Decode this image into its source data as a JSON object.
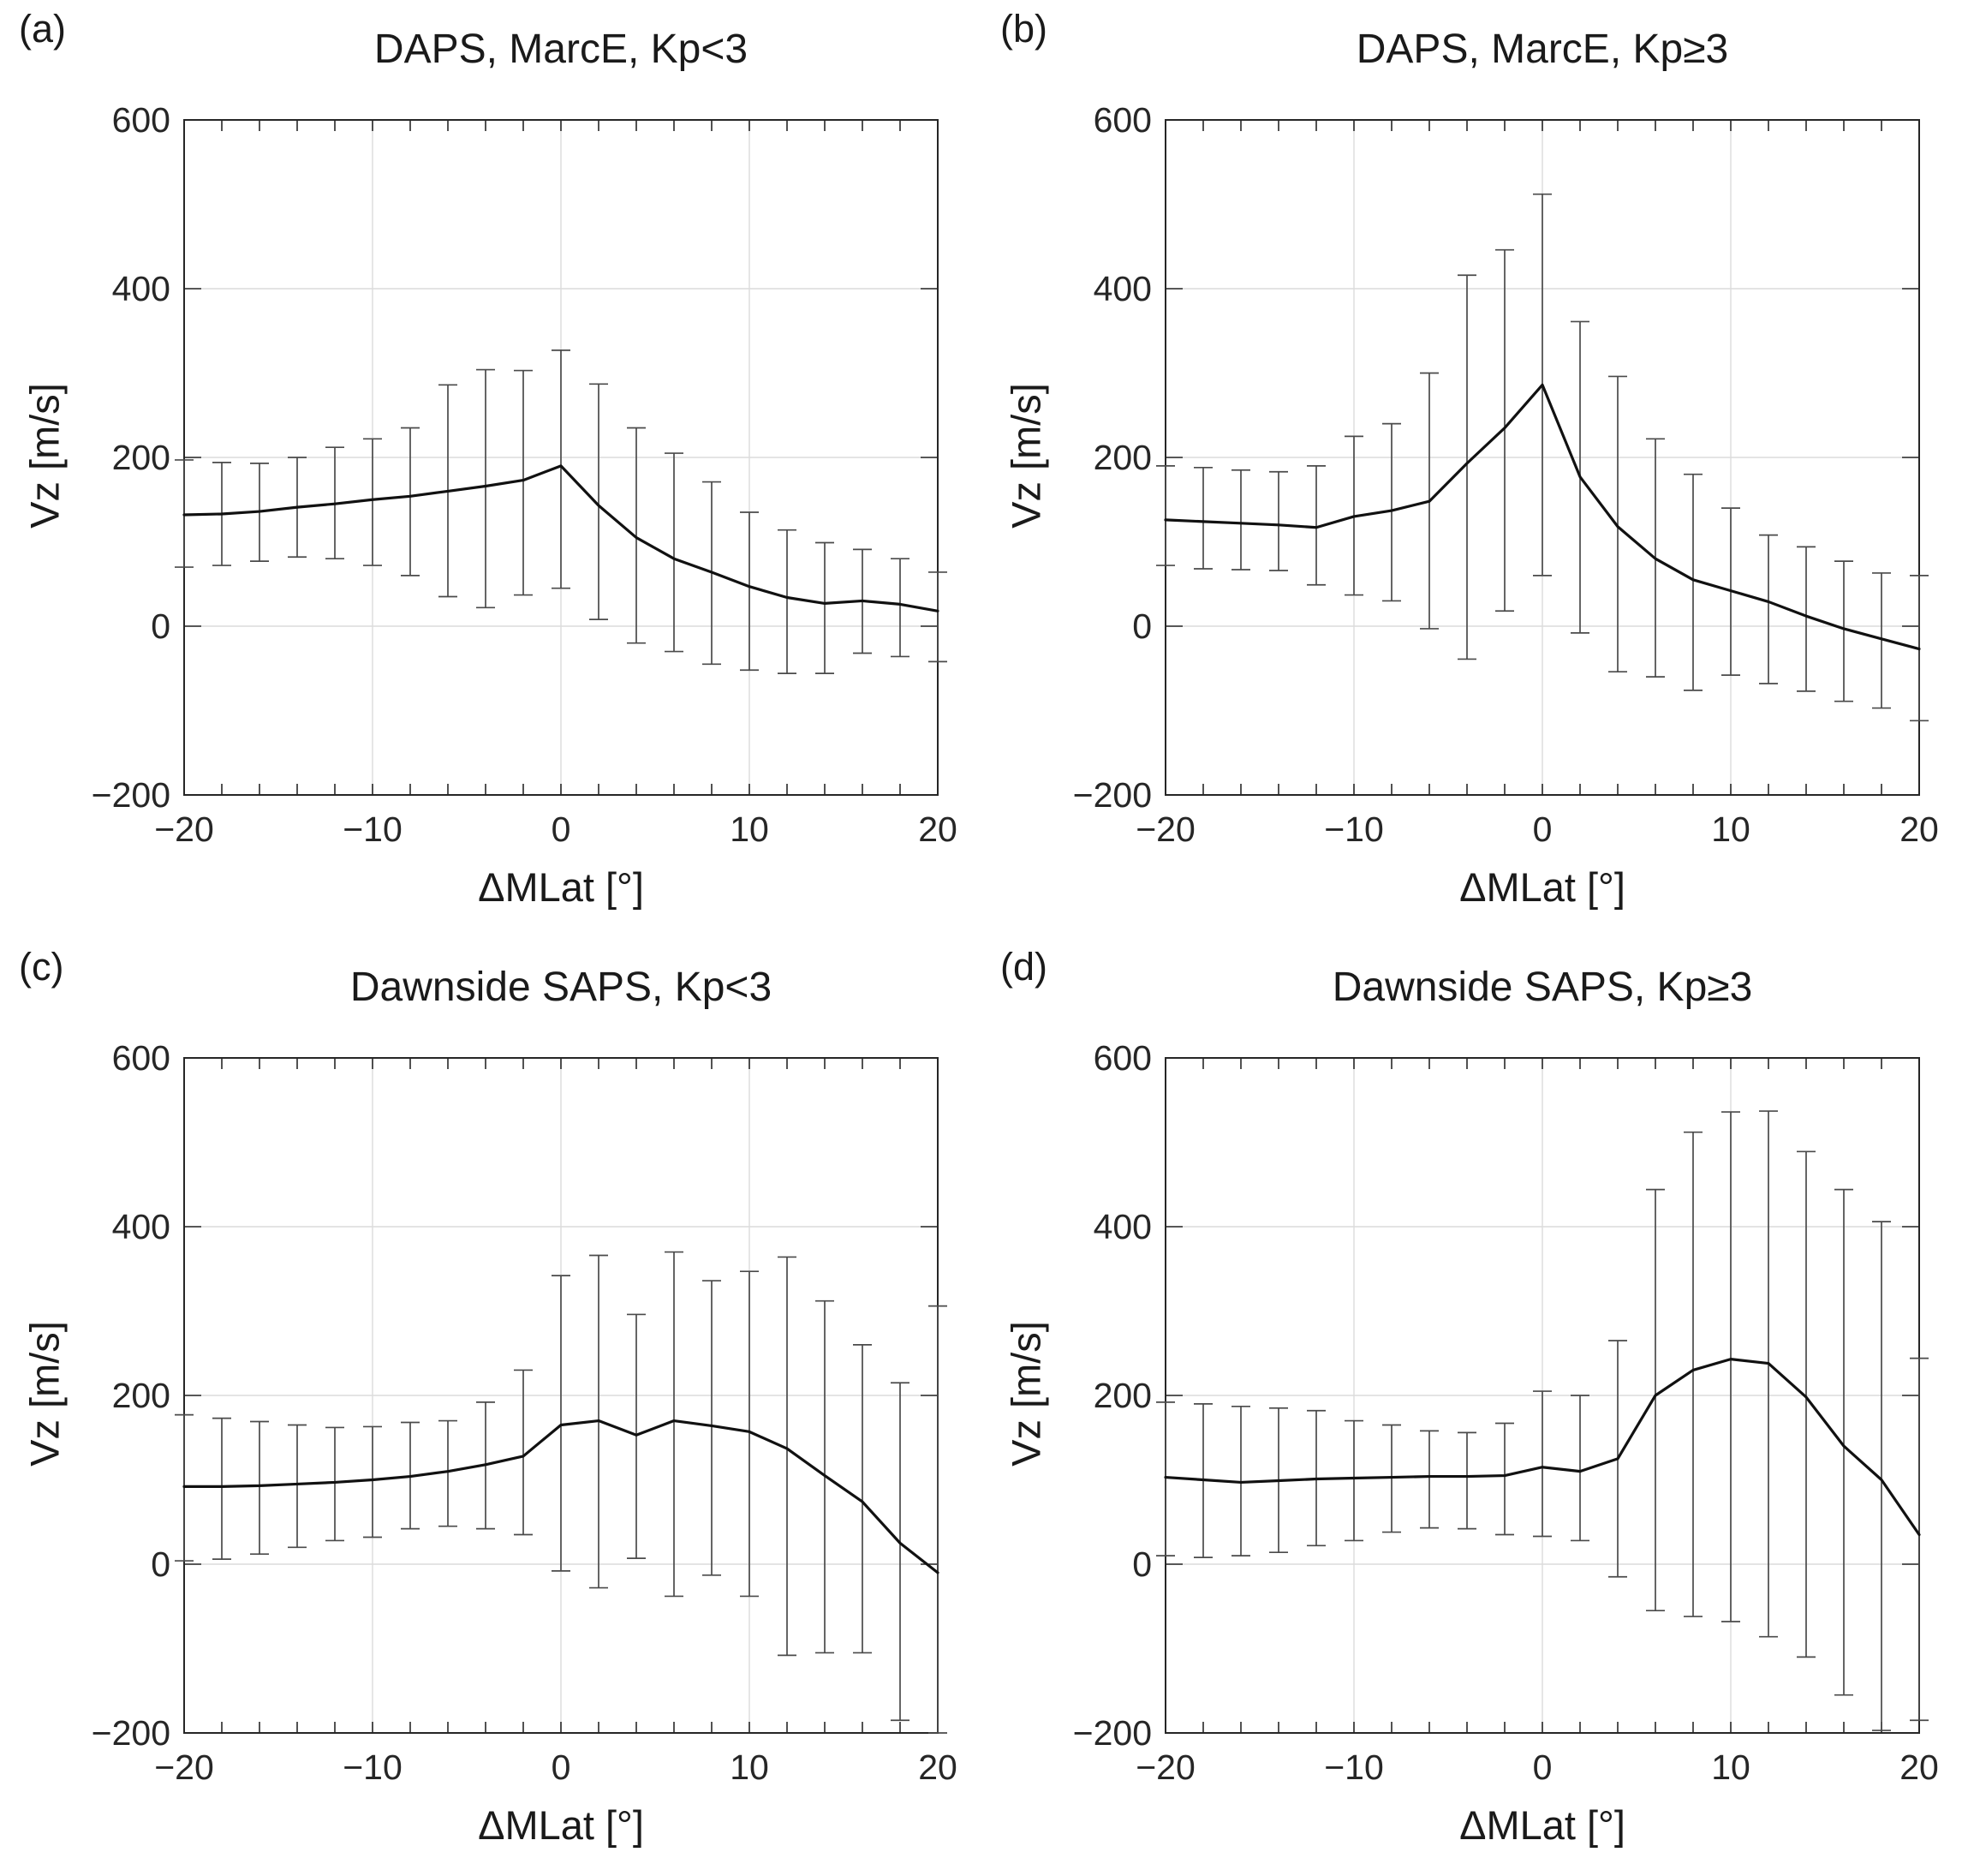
{
  "styles": {
    "background": "#ffffff",
    "line_color": "#111111",
    "errorbar_color": "#4a4a4a",
    "grid_color": "#dcdcdc",
    "axis_color": "#262626",
    "text_color": "#262626"
  },
  "chart_data": [
    {
      "panel_label": "(a)",
      "title": "DAPS, MarcE, Kp<3",
      "type": "line",
      "xlabel": "ΔMLat [°]",
      "ylabel": "Vz [m/s]",
      "xlim": [
        -20,
        20
      ],
      "ylim": [
        -200,
        600
      ],
      "grid": true,
      "x_ticks": [
        -20,
        -10,
        0,
        10,
        20
      ],
      "x_tick_labels": [
        "−20",
        "−10",
        "0",
        "10",
        "20"
      ],
      "y_ticks": [
        -200,
        0,
        200,
        400,
        600
      ],
      "y_tick_labels": [
        "−200",
        "0",
        "200",
        "400",
        "600"
      ],
      "x_minor_tick_step": 2,
      "x": [
        -20,
        -18,
        -16,
        -14,
        -12,
        -10,
        -8,
        -6,
        -4,
        -2,
        0,
        2,
        4,
        6,
        8,
        10,
        12,
        14,
        16,
        18,
        20
      ],
      "values": [
        132,
        133,
        136,
        141,
        145,
        150,
        154,
        160,
        166,
        173,
        190,
        143,
        105,
        80,
        64,
        47,
        34,
        27,
        30,
        26,
        18
      ],
      "err_hi": [
        197,
        194,
        193,
        200,
        212,
        222,
        235,
        286,
        304,
        303,
        327,
        287,
        235,
        205,
        171,
        135,
        114,
        99,
        91,
        80,
        64
      ],
      "err_lo": [
        70,
        72,
        77,
        82,
        80,
        72,
        60,
        35,
        22,
        37,
        45,
        8,
        -20,
        -30,
        -45,
        -52,
        -56,
        -56,
        -32,
        -36,
        -42
      ]
    },
    {
      "panel_label": "(b)",
      "title": "DAPS, MarcE, Kp≥3",
      "type": "line",
      "xlabel": "ΔMLat [°]",
      "ylabel": "Vz [m/s]",
      "xlim": [
        -20,
        20
      ],
      "ylim": [
        -200,
        600
      ],
      "grid": true,
      "x_ticks": [
        -20,
        -10,
        0,
        10,
        20
      ],
      "x_tick_labels": [
        "−20",
        "−10",
        "0",
        "10",
        "20"
      ],
      "y_ticks": [
        -200,
        0,
        200,
        400,
        600
      ],
      "y_tick_labels": [
        "−200",
        "0",
        "200",
        "400",
        "600"
      ],
      "x_minor_tick_step": 2,
      "x": [
        -20,
        -18,
        -16,
        -14,
        -12,
        -10,
        -8,
        -6,
        -4,
        -2,
        0,
        2,
        4,
        6,
        8,
        10,
        12,
        14,
        16,
        18,
        20
      ],
      "values": [
        126,
        124,
        122,
        120,
        117,
        130,
        137,
        148,
        193,
        235,
        286,
        177,
        118,
        80,
        55,
        42,
        29,
        12,
        -3,
        -15,
        -27
      ],
      "err_hi": [
        190,
        188,
        185,
        183,
        190,
        225,
        240,
        300,
        416,
        446,
        512,
        361,
        296,
        222,
        180,
        140,
        108,
        94,
        77,
        63,
        60
      ],
      "err_lo": [
        72,
        68,
        67,
        66,
        49,
        37,
        30,
        -3,
        -39,
        18,
        60,
        -8,
        -54,
        -60,
        -76,
        -58,
        -68,
        -77,
        -89,
        -97,
        -112
      ]
    },
    {
      "panel_label": "(c)",
      "title": "Dawnside SAPS, Kp<3",
      "type": "line",
      "xlabel": "ΔMLat [°]",
      "ylabel": "Vz [m/s]",
      "xlim": [
        -20,
        20
      ],
      "ylim": [
        -200,
        600
      ],
      "grid": true,
      "x_ticks": [
        -20,
        -10,
        0,
        10,
        20
      ],
      "x_tick_labels": [
        "−20",
        "−10",
        "0",
        "10",
        "20"
      ],
      "y_ticks": [
        -200,
        0,
        200,
        400,
        600
      ],
      "y_tick_labels": [
        "−200",
        "0",
        "200",
        "400",
        "600"
      ],
      "x_minor_tick_step": 2,
      "x": [
        -20,
        -18,
        -16,
        -14,
        -12,
        -10,
        -8,
        -6,
        -4,
        -2,
        0,
        2,
        4,
        6,
        8,
        10,
        12,
        14,
        16,
        18,
        20
      ],
      "values": [
        92,
        92,
        93,
        95,
        97,
        100,
        104,
        110,
        118,
        128,
        165,
        170,
        153,
        170,
        164,
        157,
        137,
        105,
        74,
        25,
        -10
      ],
      "err_hi": [
        177,
        173,
        169,
        165,
        162,
        163,
        168,
        170,
        192,
        230,
        342,
        366,
        296,
        370,
        336,
        347,
        364,
        312,
        260,
        215,
        306
      ],
      "err_lo": [
        4,
        6,
        12,
        20,
        28,
        32,
        42,
        45,
        42,
        35,
        -8,
        -28,
        7,
        -38,
        -13,
        -38,
        -108,
        -105,
        -105,
        -185,
        -200
      ]
    },
    {
      "panel_label": "(d)",
      "title": "Dawnside SAPS, Kp≥3",
      "type": "line",
      "xlabel": "ΔMLat [°]",
      "ylabel": "Vz [m/s]",
      "xlim": [
        -20,
        20
      ],
      "ylim": [
        -200,
        600
      ],
      "grid": true,
      "x_ticks": [
        -20,
        -10,
        0,
        10,
        20
      ],
      "x_tick_labels": [
        "−20",
        "−10",
        "0",
        "10",
        "20"
      ],
      "y_ticks": [
        -200,
        0,
        200,
        400,
        600
      ],
      "y_tick_labels": [
        "−200",
        "0",
        "200",
        "400",
        "600"
      ],
      "x_minor_tick_step": 2,
      "x": [
        -20,
        -18,
        -16,
        -14,
        -12,
        -10,
        -8,
        -6,
        -4,
        -2,
        0,
        2,
        4,
        6,
        8,
        10,
        12,
        14,
        16,
        18,
        20
      ],
      "values": [
        103,
        100,
        97,
        99,
        101,
        102,
        103,
        104,
        104,
        105,
        115,
        110,
        125,
        200,
        230,
        243,
        238,
        198,
        140,
        100,
        35
      ],
      "err_hi": [
        192,
        190,
        187,
        185,
        182,
        170,
        165,
        158,
        156,
        167,
        205,
        200,
        265,
        444,
        512,
        536,
        537,
        489,
        444,
        406,
        244
      ],
      "err_lo": [
        10,
        8,
        10,
        14,
        22,
        28,
        38,
        43,
        42,
        35,
        33,
        28,
        -15,
        -55,
        -62,
        -68,
        -86,
        -110,
        -155,
        -197,
        -185
      ]
    }
  ]
}
